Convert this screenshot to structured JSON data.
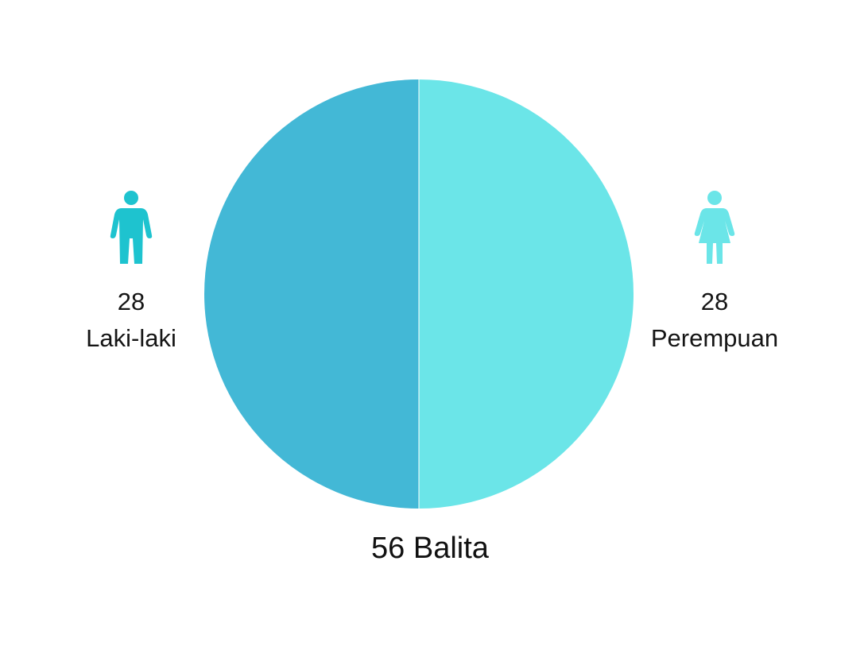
{
  "chart_data": {
    "type": "pie",
    "categories": [
      "Laki-laki",
      "Perempuan"
    ],
    "values": [
      28,
      28
    ],
    "colors": [
      "#43b8d6",
      "#6be5e8"
    ],
    "title": "",
    "total_label": "56 Balita"
  },
  "labels": {
    "male": {
      "value": "28",
      "name": "Laki-laki",
      "icon": "male-child-icon",
      "color": "#1ec3cf"
    },
    "female": {
      "value": "28",
      "name": "Perempuan",
      "icon": "female-child-icon",
      "color": "#6be5e8"
    }
  }
}
